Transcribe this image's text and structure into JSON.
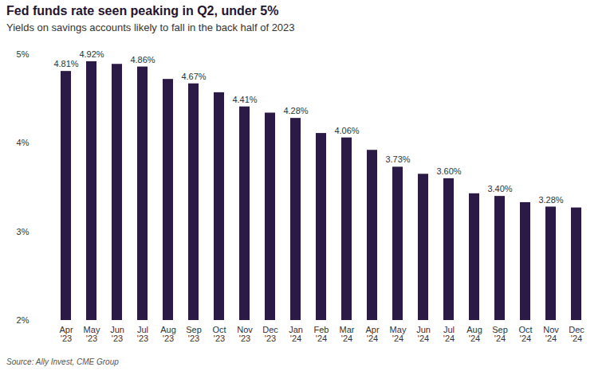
{
  "chart_data": {
    "type": "bar",
    "title": "Fed funds rate seen peaking in Q2, under 5%",
    "subtitle": "Yields on savings accounts likely to fall in the back half of 2023",
    "caption": "Source: Ally Invest, CME Group",
    "categories": [
      "Apr '23",
      "May '23",
      "Jun '23",
      "Jul '23",
      "Aug '23",
      "Sep '23",
      "Oct '23",
      "Nov '23",
      "Dec '23",
      "Jan '24",
      "Feb '24",
      "Mar '24",
      "Apr '24",
      "May '24",
      "Jun '24",
      "Jul '24",
      "Aug '24",
      "Sep '24",
      "Oct '24",
      "Nov '24",
      "Dec '24"
    ],
    "values": [
      4.81,
      4.92,
      4.89,
      4.86,
      4.72,
      4.67,
      4.57,
      4.41,
      4.34,
      4.28,
      4.11,
      4.06,
      3.92,
      3.73,
      3.65,
      3.6,
      3.43,
      3.4,
      3.33,
      3.28,
      3.27
    ],
    "value_labels": [
      "4.81%",
      "4.92%",
      null,
      "4.86%",
      null,
      "4.67%",
      null,
      "4.41%",
      null,
      "4.28%",
      null,
      "4.06%",
      null,
      "3.73%",
      null,
      "3.60%",
      null,
      "3.40%",
      null,
      "3.28%",
      null
    ],
    "data_labels": true,
    "color": "#2b1a45",
    "ylim": [
      2,
      5
    ],
    "yticks": [
      {
        "value": 2,
        "label": "2%"
      },
      {
        "value": 3,
        "label": "3%"
      },
      {
        "value": 4,
        "label": "4%"
      },
      {
        "value": 5,
        "label": "5%"
      }
    ],
    "grid": false
  }
}
